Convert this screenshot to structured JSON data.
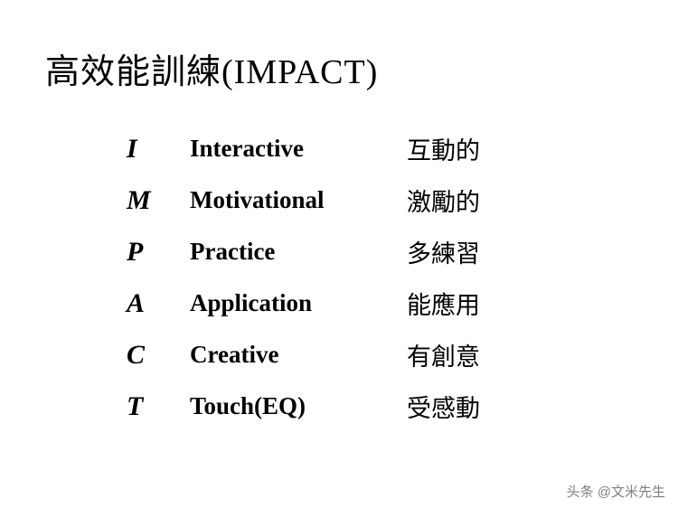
{
  "title": "高效能訓練(IMPACT)",
  "rows": [
    {
      "letter": "I",
      "english": "Interactive",
      "chinese": "互動的"
    },
    {
      "letter": "M",
      "english": "Motivational",
      "chinese": "激勵的"
    },
    {
      "letter": "P",
      "english": "Practice",
      "chinese": "多練習"
    },
    {
      "letter": "A",
      "english": "Application",
      "chinese": "能應用"
    },
    {
      "letter": "C",
      "english": "Creative",
      "chinese": "有創意"
    },
    {
      "letter": "T",
      "english": "Touch(EQ)",
      "chinese": "受感動"
    }
  ],
  "watermark": "头条 @文米先生",
  "style": {
    "background_color": "#ffffff",
    "text_color": "#000000",
    "watermark_color": "#808080",
    "title_fontsize": 38,
    "letter_fontsize": 30,
    "english_fontsize": 27,
    "chinese_fontsize": 27,
    "watermark_fontsize": 15,
    "letter_col_width": 70,
    "english_col_width": 240,
    "row_gap": 18,
    "letter_font_weight": "bold",
    "letter_font_style": "italic",
    "english_font_weight": "bold"
  }
}
